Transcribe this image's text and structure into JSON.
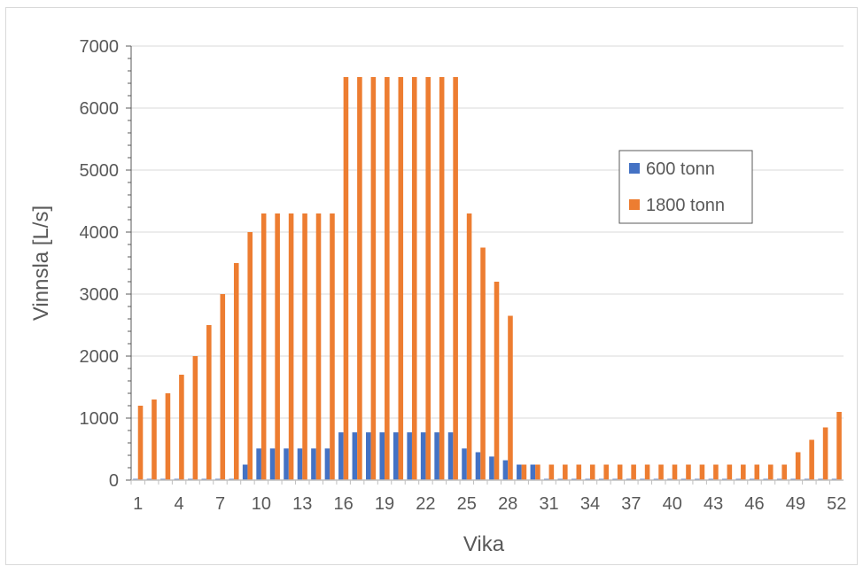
{
  "chart_data": {
    "type": "bar",
    "title": "",
    "xlabel": "Vika",
    "ylabel": "Vinnsla [L/s]",
    "ylim": [
      0,
      7000
    ],
    "yticks": [
      0,
      1000,
      2000,
      3000,
      4000,
      5000,
      6000,
      7000
    ],
    "xtick_labels": [
      "1",
      "4",
      "7",
      "10",
      "13",
      "16",
      "19",
      "22",
      "25",
      "28",
      "31",
      "34",
      "37",
      "40",
      "43",
      "46",
      "49",
      "52"
    ],
    "grid": "horizontal",
    "legend_position": "right",
    "categories": [
      1,
      2,
      3,
      4,
      5,
      6,
      7,
      8,
      9,
      10,
      11,
      12,
      13,
      14,
      15,
      16,
      17,
      18,
      19,
      20,
      21,
      22,
      23,
      24,
      25,
      26,
      27,
      28,
      29,
      30,
      31,
      32,
      33,
      34,
      35,
      36,
      37,
      38,
      39,
      40,
      41,
      42,
      43,
      44,
      45,
      46,
      47,
      48,
      49,
      50,
      51,
      52
    ],
    "series": [
      {
        "name": "600 tonn",
        "color": "#4472c4",
        "values": [
          20,
          20,
          20,
          20,
          20,
          20,
          20,
          20,
          250,
          510,
          510,
          510,
          510,
          510,
          510,
          770,
          770,
          770,
          770,
          770,
          770,
          770,
          770,
          770,
          510,
          450,
          380,
          320,
          250,
          250,
          20,
          20,
          20,
          20,
          20,
          20,
          20,
          20,
          20,
          20,
          20,
          20,
          20,
          20,
          20,
          20,
          20,
          20,
          20,
          20,
          20,
          20
        ]
      },
      {
        "name": "1800 tonn",
        "color": "#ed7d31",
        "values": [
          1200,
          1300,
          1400,
          1700,
          2000,
          2500,
          3000,
          3500,
          4000,
          4300,
          4300,
          4300,
          4300,
          4300,
          4300,
          6500,
          6500,
          6500,
          6500,
          6500,
          6500,
          6500,
          6500,
          6500,
          4300,
          3750,
          3200,
          2650,
          250,
          250,
          250,
          250,
          250,
          250,
          250,
          250,
          250,
          250,
          250,
          250,
          250,
          250,
          250,
          250,
          250,
          250,
          250,
          250,
          450,
          650,
          850,
          1100
        ]
      }
    ]
  }
}
